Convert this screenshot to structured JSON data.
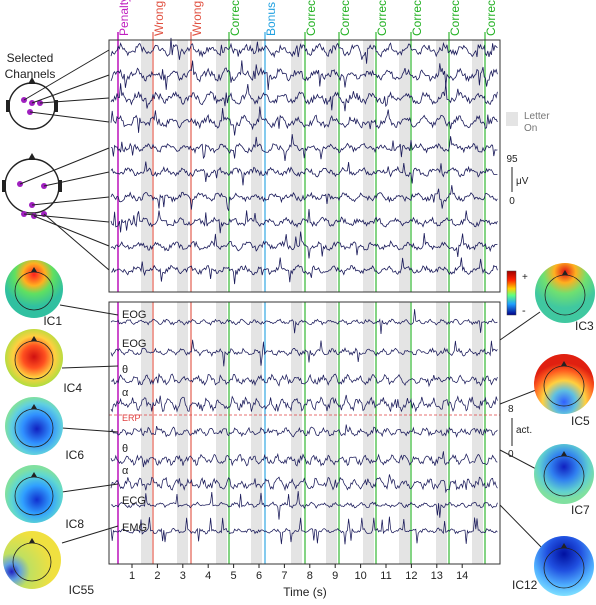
{
  "events": [
    {
      "label": "Penalty",
      "color": "#c020c0"
    },
    {
      "label": "Wrong",
      "color": "#e05040"
    },
    {
      "label": "Wrong",
      "color": "#e05040"
    },
    {
      "label": "Correct",
      "color": "#20b020"
    },
    {
      "label": "Bonus",
      "color": "#20a0e0"
    },
    {
      "label": "Correct",
      "color": "#20b020"
    },
    {
      "label": "Correct",
      "color": "#20b020"
    },
    {
      "label": "Correct",
      "color": "#20b020"
    },
    {
      "label": "Correct",
      "color": "#20b020"
    },
    {
      "label": "Correct",
      "color": "#20b020"
    },
    {
      "label": "Correct",
      "color": "#20b020"
    }
  ],
  "selected_channels_label": [
    "Selected",
    "Channels"
  ],
  "letter_on_label": [
    "Letter",
    "On"
  ],
  "scale_bar": {
    "top": "95",
    "unit": "μV",
    "bottom": "0"
  },
  "act_scale": {
    "top": "8",
    "unit": "act.",
    "bottom": "0"
  },
  "colorbar": {
    "plus": "+",
    "minus": "-"
  },
  "component_labels": [
    "EOG",
    "EOG",
    "θ",
    "α",
    "ERP",
    "θ",
    "α",
    "ECG",
    "EMG"
  ],
  "ic_left": [
    "IC1",
    "IC4",
    "IC6",
    "IC8",
    "IC55"
  ],
  "ic_right": [
    "IC3",
    "IC5",
    "IC7",
    "IC12"
  ],
  "x_ticks": [
    "1",
    "2",
    "3",
    "4",
    "5",
    "6",
    "7",
    "8",
    "9",
    "10",
    "11",
    "12",
    "13",
    "14"
  ],
  "x_axis_label": "Time (s)",
  "colors": {
    "trace": "#1a1a5a",
    "shade": "#e4e4e4",
    "erp": "#e04040"
  }
}
